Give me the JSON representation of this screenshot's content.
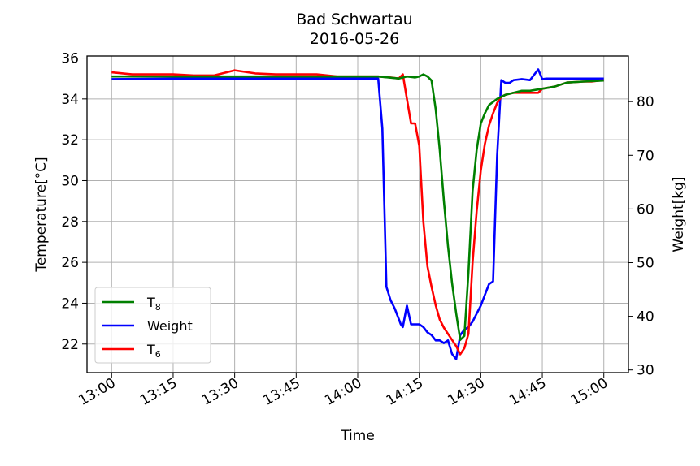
{
  "chart_data": {
    "type": "line",
    "title": "Bad Schwartau",
    "subtitle": "2016-05-26",
    "xlabel": "Time",
    "ylabel_left": "Temperature[°C]",
    "ylabel_right": "Weight[kg]",
    "xlim": [
      "12:54",
      "15:06"
    ],
    "ylim_left": [
      20.6,
      36.1
    ],
    "ylim_right": [
      29.5,
      88.5
    ],
    "grid": true,
    "legend_position": "lower-left",
    "x_ticks": [
      "13:00",
      "13:15",
      "13:30",
      "13:45",
      "14:00",
      "14:15",
      "14:30",
      "14:45",
      "15:00"
    ],
    "y_ticks_left": [
      22,
      24,
      26,
      28,
      30,
      32,
      34,
      36
    ],
    "y_ticks_right": [
      30,
      40,
      50,
      60,
      70,
      80
    ],
    "series": [
      {
        "name": "T8",
        "axis": "left",
        "color": "#008000",
        "x": [
          "13:00",
          "13:10",
          "13:20",
          "13:30",
          "13:40",
          "13:50",
          "14:00",
          "14:05",
          "14:10",
          "14:12",
          "14:14",
          "14:15",
          "14:16",
          "14:17",
          "14:18",
          "14:19",
          "14:20",
          "14:21",
          "14:22",
          "14:23",
          "14:24",
          "14:25",
          "14:26",
          "14:27",
          "14:28",
          "14:29",
          "14:30",
          "14:31",
          "14:32",
          "14:34",
          "14:36",
          "14:38",
          "14:40",
          "14:42",
          "14:45",
          "14:48",
          "14:51",
          "14:55",
          "15:00"
        ],
        "values": [
          35.1,
          35.1,
          35.1,
          35.1,
          35.1,
          35.1,
          35.1,
          35.1,
          35.0,
          35.1,
          35.05,
          35.1,
          35.2,
          35.1,
          34.9,
          33.5,
          31.5,
          29.0,
          26.8,
          25.0,
          23.5,
          22.2,
          22.4,
          25.5,
          29.5,
          31.5,
          32.8,
          33.3,
          33.7,
          34.0,
          34.2,
          34.3,
          34.4,
          34.4,
          34.5,
          34.6,
          34.8,
          34.85,
          34.9
        ]
      },
      {
        "name": "Weight",
        "axis": "right",
        "color": "#0000ff",
        "x": [
          "13:00",
          "13:15",
          "13:30",
          "13:45",
          "14:00",
          "14:05",
          "14:06",
          "14:07",
          "14:08",
          "14:09",
          "14:10",
          "14:10.5",
          "14:11",
          "14:11.5",
          "14:12",
          "14:13",
          "14:14",
          "14:15",
          "14:16",
          "14:17",
          "14:18",
          "14:19",
          "14:20",
          "14:21",
          "14:22",
          "14:23",
          "14:24",
          "14:25",
          "14:26",
          "14:27",
          "14:28",
          "14:29",
          "14:30",
          "14:31",
          "14:32",
          "14:33",
          "14:34",
          "14:35",
          "14:36",
          "14:37",
          "14:38",
          "14:40",
          "14:42",
          "14:44",
          "14:45",
          "14:46",
          "14:48",
          "14:50",
          "14:55",
          "15:00"
        ],
        "values": [
          84.2,
          84.3,
          84.3,
          84.3,
          84.3,
          84.3,
          75.0,
          45.5,
          43.0,
          41.5,
          39.5,
          38.5,
          38.0,
          40.0,
          42.0,
          38.5,
          38.5,
          38.5,
          38.0,
          37.0,
          36.5,
          35.5,
          35.5,
          35.0,
          35.5,
          33.0,
          32.0,
          36.5,
          37.5,
          38.0,
          39.0,
          40.5,
          42.0,
          44.0,
          46.0,
          46.5,
          70.0,
          84.0,
          83.5,
          83.5,
          84.0,
          84.2,
          84.0,
          86.0,
          84.2,
          84.3,
          84.3,
          84.3,
          84.3,
          84.3
        ],
        "note_unused": ""
      },
      {
        "name": "T6",
        "axis": "left",
        "color": "#ff0000",
        "x": [
          "13:00",
          "13:05",
          "13:10",
          "13:15",
          "13:20",
          "13:25",
          "13:30",
          "13:35",
          "13:40",
          "13:45",
          "13:50",
          "13:55",
          "14:00",
          "14:05",
          "14:08",
          "14:10",
          "14:11",
          "14:12",
          "14:13",
          "14:14",
          "14:15",
          "14:16",
          "14:17",
          "14:18",
          "14:19",
          "14:20",
          "14:21",
          "14:22",
          "14:23",
          "14:24",
          "14:25",
          "14:26",
          "14:27",
          "14:28",
          "14:29",
          "14:30",
          "14:31",
          "14:32",
          "14:33",
          "14:34",
          "14:35",
          "14:36",
          "14:38",
          "14:40",
          "14:42",
          "14:44",
          "14:45",
          "14:48",
          "14:51",
          "14:55",
          "14:57",
          "14:59",
          "15:00"
        ],
        "values": [
          35.3,
          35.2,
          35.2,
          35.2,
          35.15,
          35.15,
          35.4,
          35.25,
          35.2,
          35.2,
          35.2,
          35.1,
          35.1,
          35.1,
          35.05,
          35.0,
          35.2,
          34.0,
          32.8,
          32.8,
          31.7,
          28.0,
          25.8,
          24.8,
          23.9,
          23.2,
          22.8,
          22.5,
          22.2,
          21.9,
          21.5,
          21.8,
          22.5,
          26.0,
          28.5,
          30.5,
          31.8,
          32.7,
          33.3,
          33.8,
          34.1,
          34.2,
          34.3,
          34.3,
          34.3,
          34.3,
          34.5,
          34.6,
          34.8,
          34.85,
          34.85,
          34.9,
          34.9
        ]
      }
    ]
  }
}
